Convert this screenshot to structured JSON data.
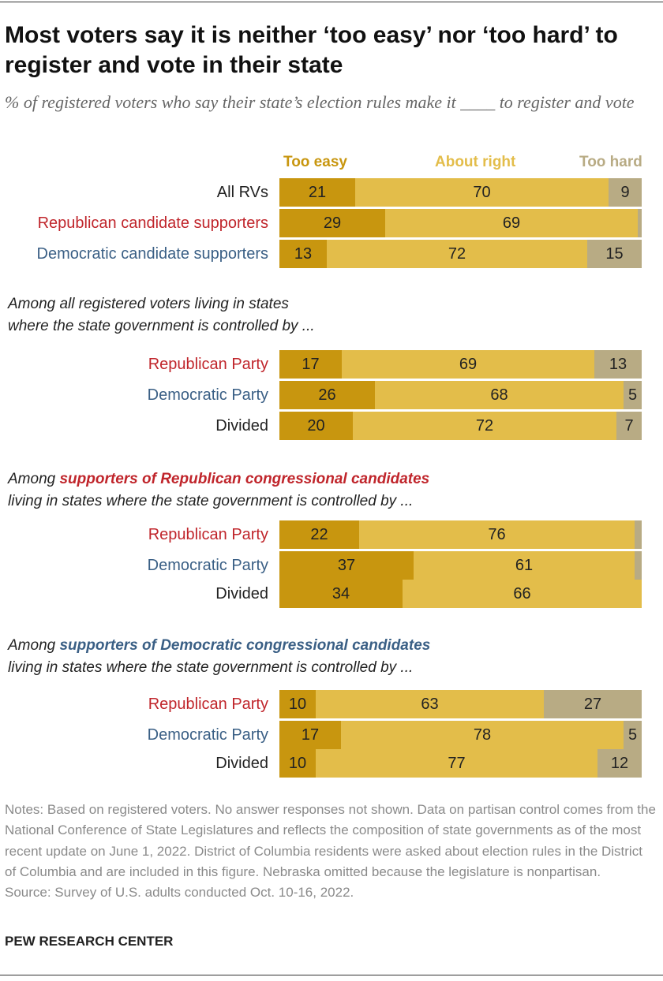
{
  "chart_data": {
    "type": "bar",
    "stacked": true,
    "orientation": "horizontal",
    "title": "Most voters say it is neither ‘too easy’ nor ‘too hard’ to register and vote in their state",
    "subtitle": "% of registered voters who say their state’s election rules make it ____ to register and vote",
    "series": [
      {
        "key": "too_easy",
        "name": "Too easy",
        "color": "#c8960f"
      },
      {
        "key": "about_right",
        "name": "About right",
        "color": "#e3bd4a"
      },
      {
        "key": "too_hard",
        "name": "Too hard",
        "color": "#b8ab84"
      }
    ],
    "groups": [
      {
        "heading": null,
        "rows": [
          {
            "label": "All RVs",
            "label_color": "#222222",
            "values": [
              21,
              70,
              9
            ],
            "shown": [
              "21",
              "70",
              "9"
            ]
          },
          {
            "label": "Republican candidate supporters",
            "label_color": "#c0252b",
            "values": [
              29,
              69,
              1
            ],
            "shown": [
              "29",
              "69",
              ""
            ]
          },
          {
            "label": "Democratic candidate supporters",
            "label_color": "#3a5f85",
            "values": [
              13,
              72,
              15
            ],
            "shown": [
              "13",
              "72",
              "15"
            ]
          }
        ]
      },
      {
        "heading": {
          "before": "Among all registered voters living in states",
          "highlight": "",
          "highlight_color": "#222222",
          "after": "",
          "line2": "where the state government is controlled by ..."
        },
        "rows": [
          {
            "label": "Republican Party",
            "label_color": "#c0252b",
            "values": [
              17,
              69,
              13
            ],
            "shown": [
              "17",
              "69",
              "13"
            ]
          },
          {
            "label": "Democratic Party",
            "label_color": "#3a5f85",
            "values": [
              26,
              68,
              5
            ],
            "shown": [
              "26",
              "68",
              "5"
            ]
          },
          {
            "label": "Divided",
            "label_color": "#222222",
            "values": [
              20,
              72,
              7
            ],
            "shown": [
              "20",
              "72",
              "7"
            ]
          }
        ]
      },
      {
        "heading": {
          "before": "Among ",
          "highlight": "supporters of Republican congressional candidates",
          "highlight_color": "#c0252b",
          "after": "",
          "line2": "living in states where the state government is controlled by ..."
        },
        "rows": [
          {
            "label": "Republican Party",
            "label_color": "#c0252b",
            "values": [
              22,
              76,
              2
            ],
            "shown": [
              "22",
              "76",
              ""
            ]
          },
          {
            "label": "Democratic Party",
            "label_color": "#3a5f85",
            "values": [
              37,
              61,
              2
            ],
            "shown": [
              "37",
              "61",
              ""
            ]
          },
          {
            "label": "Divided",
            "label_color": "#222222",
            "values": [
              34,
              66,
              0
            ],
            "shown": [
              "34",
              "66",
              ""
            ]
          }
        ]
      },
      {
        "heading": {
          "before": "Among ",
          "highlight": "supporters of Democratic congressional candidates",
          "highlight_color": "#3a5f85",
          "after": "",
          "line2": "living in states where the state government is controlled by ..."
        },
        "rows": [
          {
            "label": "Republican Party",
            "label_color": "#c0252b",
            "values": [
              10,
              63,
              27
            ],
            "shown": [
              "10",
              "63",
              "27"
            ]
          },
          {
            "label": "Democratic Party",
            "label_color": "#3a5f85",
            "values": [
              17,
              78,
              5
            ],
            "shown": [
              "17",
              "78",
              "5"
            ]
          },
          {
            "label": "Divided",
            "label_color": "#222222",
            "values": [
              10,
              77,
              12
            ],
            "shown": [
              "10",
              "77",
              "12"
            ]
          }
        ]
      }
    ],
    "xlim": [
      0,
      100
    ]
  },
  "notes": "Notes: Based on registered voters. No answer responses not shown. Data on partisan control comes from the National Conference of State Legislatures and reflects the composition of state governments as of the most recent update on June 1, 2022. District of Columbia residents were asked about election rules in the District of Columbia and are included in this figure. Nebraska omitted because the legislature is nonpartisan.",
  "source": "Source: Survey of U.S. adults conducted Oct. 10-16, 2022.",
  "logo": "PEW RESEARCH CENTER"
}
